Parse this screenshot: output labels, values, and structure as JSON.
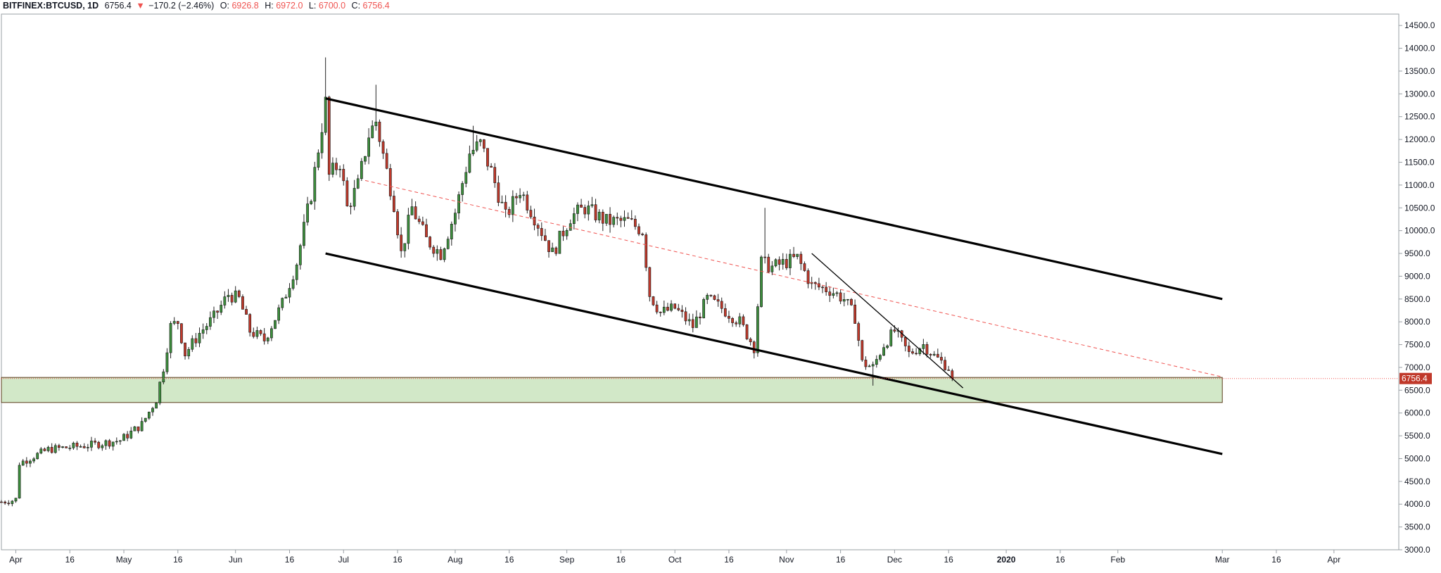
{
  "header": {
    "symbol": "BITFINEX:BTCUSD, 1D",
    "last": "6756.4",
    "change": "−170.2 (−2.46%)",
    "o_label": "O:",
    "o_value": "6926.8",
    "h_label": "H:",
    "h_value": "6972.0",
    "l_label": "L:",
    "l_value": "6700.0",
    "c_label": "C:",
    "c_value": "6756.4"
  },
  "colors": {
    "up_candle": "#3d8f3d",
    "down_candle": "#c0392b",
    "wick": "#222222",
    "channel": "#000000",
    "midline": "#ef5350",
    "support_zone_fill": "#d2e8c8",
    "support_zone_border": "#5a3a1a",
    "price_label_bg": "#c0392b"
  },
  "chart_data": {
    "type": "candlestick",
    "title": "BITFINEX:BTCUSD, 1D",
    "ylim": [
      3000,
      14750
    ],
    "y_ticks": [
      "3000.0",
      "3500.0",
      "4000.0",
      "4500.0",
      "5000.0",
      "5500.0",
      "6000.0",
      "6500.0",
      "7000.0",
      "7500.0",
      "8000.0",
      "8500.0",
      "9000.0",
      "9500.0",
      "10000.0",
      "10500.0",
      "11000.0",
      "11500.0",
      "12000.0",
      "12500.0",
      "13000.0",
      "13500.0",
      "14000.0",
      "14500.0"
    ],
    "x_start": "2019-03-28",
    "x_end": "2020-04-19",
    "x_ticks": [
      {
        "label": "Apr",
        "date": "2019-04-01"
      },
      {
        "label": "16",
        "date": "2019-04-16"
      },
      {
        "label": "May",
        "date": "2019-05-01"
      },
      {
        "label": "16",
        "date": "2019-05-16"
      },
      {
        "label": "Jun",
        "date": "2019-06-01"
      },
      {
        "label": "16",
        "date": "2019-06-16"
      },
      {
        "label": "Jul",
        "date": "2019-07-01"
      },
      {
        "label": "16",
        "date": "2019-07-16"
      },
      {
        "label": "Aug",
        "date": "2019-08-01"
      },
      {
        "label": "16",
        "date": "2019-08-16"
      },
      {
        "label": "Sep",
        "date": "2019-09-01"
      },
      {
        "label": "16",
        "date": "2019-09-16"
      },
      {
        "label": "Oct",
        "date": "2019-10-01"
      },
      {
        "label": "16",
        "date": "2019-10-16"
      },
      {
        "label": "Nov",
        "date": "2019-11-01"
      },
      {
        "label": "16",
        "date": "2019-11-16"
      },
      {
        "label": "Dec",
        "date": "2019-12-01"
      },
      {
        "label": "16",
        "date": "2019-12-16"
      },
      {
        "label": "2020",
        "date": "2020-01-01",
        "bold": true
      },
      {
        "label": "16",
        "date": "2020-01-16"
      },
      {
        "label": "Feb",
        "date": "2020-02-01"
      },
      {
        "label": "Mar",
        "date": "2020-03-01"
      },
      {
        "label": "16",
        "date": "2020-03-16"
      },
      {
        "label": "Apr",
        "date": "2020-04-01"
      }
    ],
    "series_start": "2019-03-28",
    "close_anchors": [
      [
        "2019-03-28",
        4050
      ],
      [
        "2019-03-31",
        4080
      ],
      [
        "2019-04-01",
        4110
      ],
      [
        "2019-04-02",
        4900
      ],
      [
        "2019-04-06",
        5050
      ],
      [
        "2019-04-10",
        5200
      ],
      [
        "2019-04-16",
        5250
      ],
      [
        "2019-04-22",
        5300
      ],
      [
        "2019-04-30",
        5400
      ],
      [
        "2019-05-06",
        5750
      ],
      [
        "2019-05-10",
        6300
      ],
      [
        "2019-05-12",
        7000
      ],
      [
        "2019-05-14",
        7900
      ],
      [
        "2019-05-16",
        8000
      ],
      [
        "2019-05-18",
        7300
      ],
      [
        "2019-05-22",
        7750
      ],
      [
        "2019-05-26",
        8100
      ],
      [
        "2019-05-30",
        8600
      ],
      [
        "2019-06-02",
        8500
      ],
      [
        "2019-06-05",
        7800
      ],
      [
        "2019-06-09",
        7600
      ],
      [
        "2019-06-14",
        8400
      ],
      [
        "2019-06-18",
        9300
      ],
      [
        "2019-06-22",
        10800
      ],
      [
        "2019-06-26",
        12800
      ],
      [
        "2019-06-27",
        11200
      ],
      [
        "2019-06-30",
        11500
      ],
      [
        "2019-07-02",
        10500
      ],
      [
        "2019-07-05",
        11000
      ],
      [
        "2019-07-08",
        12100
      ],
      [
        "2019-07-10",
        12400
      ],
      [
        "2019-07-13",
        11300
      ],
      [
        "2019-07-15",
        10600
      ],
      [
        "2019-07-17",
        9500
      ],
      [
        "2019-07-20",
        10500
      ],
      [
        "2019-07-24",
        9800
      ],
      [
        "2019-07-28",
        9500
      ],
      [
        "2019-08-01",
        10400
      ],
      [
        "2019-08-05",
        11700
      ],
      [
        "2019-08-08",
        11900
      ],
      [
        "2019-08-11",
        11300
      ],
      [
        "2019-08-15",
        10300
      ],
      [
        "2019-08-19",
        10900
      ],
      [
        "2019-08-23",
        10300
      ],
      [
        "2019-08-28",
        9500
      ],
      [
        "2019-09-02",
        10300
      ],
      [
        "2019-09-06",
        10500
      ],
      [
        "2019-09-12",
        10200
      ],
      [
        "2019-09-18",
        10200
      ],
      [
        "2019-09-22",
        10000
      ],
      [
        "2019-09-24",
        8600
      ],
      [
        "2019-09-27",
        8200
      ],
      [
        "2019-10-01",
        8300
      ],
      [
        "2019-10-06",
        7900
      ],
      [
        "2019-10-10",
        8500
      ],
      [
        "2019-10-14",
        8300
      ],
      [
        "2019-10-19",
        8000
      ],
      [
        "2019-10-23",
        7450
      ],
      [
        "2019-10-25",
        9300
      ],
      [
        "2019-10-28",
        9200
      ],
      [
        "2019-11-04",
        9400
      ],
      [
        "2019-11-08",
        8800
      ],
      [
        "2019-11-13",
        8700
      ],
      [
        "2019-11-17",
        8500
      ],
      [
        "2019-11-20",
        8100
      ],
      [
        "2019-11-22",
        7100
      ],
      [
        "2019-11-25",
        7000
      ],
      [
        "2019-11-28",
        7500
      ],
      [
        "2019-12-01",
        7800
      ],
      [
        "2019-12-05",
        7300
      ],
      [
        "2019-12-09",
        7500
      ],
      [
        "2019-12-12",
        7250
      ],
      [
        "2019-12-16",
        7000
      ],
      [
        "2019-12-17",
        6756.4
      ]
    ],
    "wick_spikes": [
      [
        "2019-06-26",
        13800
      ],
      [
        "2019-07-10",
        13200
      ],
      [
        "2019-08-06",
        12300
      ],
      [
        "2019-10-26",
        10500
      ],
      [
        "2019-11-25",
        6600
      ]
    ],
    "last_price": 6756.4,
    "last_price_label": "6756.4",
    "upper_channel": [
      [
        "2019-06-26",
        12900
      ],
      [
        "2020-03-01",
        8500
      ]
    ],
    "lower_channel": [
      [
        "2019-06-26",
        9500
      ],
      [
        "2020-03-01",
        5100
      ]
    ],
    "midline": [
      [
        "2019-07-07",
        11100
      ],
      [
        "2020-03-01",
        6790
      ]
    ],
    "short_trendline": [
      [
        "2019-11-08",
        9500
      ],
      [
        "2019-12-20",
        6550
      ]
    ],
    "support_zone": {
      "x_from": "2019-03-28",
      "x_to": "2020-03-01",
      "y_from": 6230,
      "y_to": 6780
    }
  }
}
